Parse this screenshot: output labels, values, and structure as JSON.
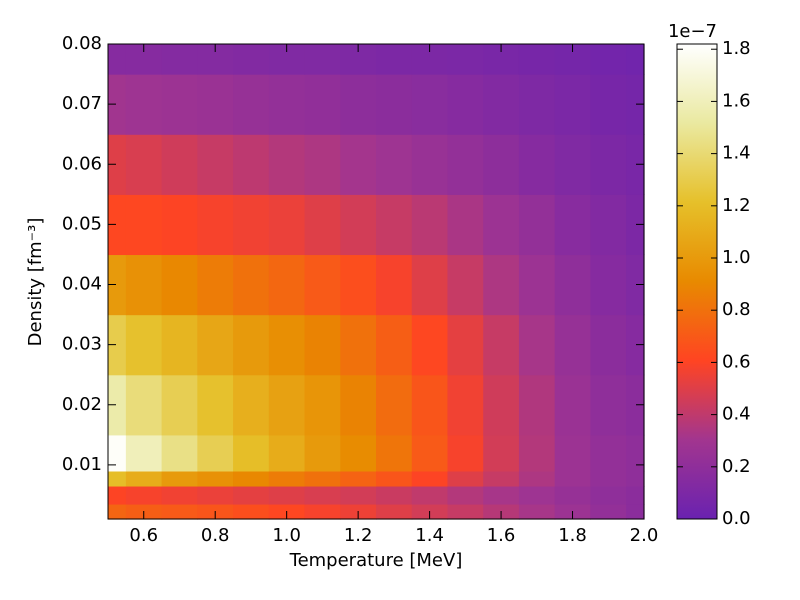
{
  "chart_data": {
    "type": "heatmap",
    "xlabel": "Temperature [MeV]",
    "ylabel": "Density [fm⁻³]",
    "x": [
      0.5,
      0.6,
      0.7,
      0.8,
      0.9,
      1.0,
      1.1,
      1.2,
      1.3,
      1.4,
      1.5,
      1.6,
      1.7,
      1.8,
      1.9,
      2.0
    ],
    "y": [
      0.002,
      0.005,
      0.008,
      0.01,
      0.02,
      0.03,
      0.04,
      0.05,
      0.06,
      0.07,
      0.08
    ],
    "z": [
      [
        0.75,
        0.72,
        0.7,
        0.68,
        0.65,
        0.62,
        0.58,
        0.55,
        0.5,
        0.46,
        0.42,
        0.37,
        0.32,
        0.27,
        0.22,
        0.18
      ],
      [
        0.6,
        0.58,
        0.56,
        0.54,
        0.52,
        0.5,
        0.48,
        0.46,
        0.43,
        0.4,
        0.36,
        0.32,
        0.28,
        0.24,
        0.2,
        0.18
      ],
      [
        1.2,
        1.1,
        1.0,
        0.95,
        0.9,
        0.85,
        0.8,
        0.74,
        0.68,
        0.6,
        0.5,
        0.42,
        0.34,
        0.27,
        0.22,
        0.2
      ],
      [
        1.8,
        1.6,
        1.45,
        1.32,
        1.2,
        1.1,
        1.0,
        0.92,
        0.82,
        0.7,
        0.58,
        0.46,
        0.36,
        0.27,
        0.22,
        0.2
      ],
      [
        1.55,
        1.42,
        1.32,
        1.22,
        1.12,
        1.04,
        0.97,
        0.88,
        0.78,
        0.68,
        0.56,
        0.45,
        0.35,
        0.26,
        0.2,
        0.18
      ],
      [
        1.3,
        1.22,
        1.15,
        1.07,
        1.0,
        0.94,
        0.88,
        0.8,
        0.72,
        0.62,
        0.52,
        0.42,
        0.32,
        0.24,
        0.18,
        0.15
      ],
      [
        1.0,
        0.95,
        0.9,
        0.85,
        0.8,
        0.76,
        0.7,
        0.65,
        0.58,
        0.5,
        0.42,
        0.34,
        0.27,
        0.2,
        0.15,
        0.12
      ],
      [
        0.62,
        0.62,
        0.6,
        0.58,
        0.56,
        0.54,
        0.5,
        0.46,
        0.42,
        0.38,
        0.33,
        0.27,
        0.22,
        0.16,
        0.13,
        0.1
      ],
      [
        0.5,
        0.48,
        0.45,
        0.42,
        0.39,
        0.36,
        0.34,
        0.31,
        0.28,
        0.25,
        0.22,
        0.19,
        0.15,
        0.12,
        0.1,
        0.08
      ],
      [
        0.3,
        0.28,
        0.27,
        0.26,
        0.24,
        0.22,
        0.21,
        0.19,
        0.18,
        0.17,
        0.15,
        0.13,
        0.11,
        0.09,
        0.07,
        0.06
      ],
      [
        0.15,
        0.15,
        0.14,
        0.14,
        0.13,
        0.12,
        0.12,
        0.11,
        0.1,
        0.1,
        0.09,
        0.08,
        0.07,
        0.06,
        0.05,
        0.04
      ]
    ],
    "xlim": [
      0.5,
      2.0
    ],
    "xticks": [
      0.6,
      0.8,
      {
        "value": 1.0,
        "label": "1.0"
      },
      1.2,
      1.4,
      1.6,
      1.8,
      {
        "value": 2.0,
        "label": "2.0"
      }
    ],
    "ylim": [
      0.001,
      0.08
    ],
    "yticks": [
      0.01,
      0.02,
      0.03,
      0.04,
      0.05,
      0.06,
      0.07,
      0.08
    ],
    "zlim": [
      0,
      1.82
    ],
    "zticks": [
      {
        "value": 0,
        "label": "0.0"
      },
      0.2,
      0.4,
      0.6,
      0.8,
      {
        "value": 1.0,
        "label": "1.0"
      },
      1.2,
      1.4,
      1.6,
      1.8
    ],
    "colorbar_offset": "1e−7",
    "colormap": [
      "#6a22b0",
      "#a2358f",
      "#ff4422",
      "#e88a00",
      "#e6c02a",
      "#eae9a0",
      "#ffffff"
    ]
  }
}
